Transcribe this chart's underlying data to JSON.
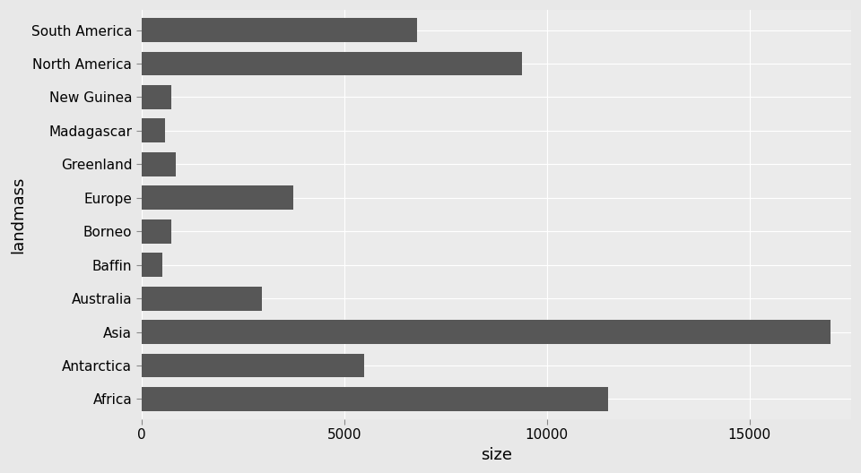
{
  "landmasses": [
    "South America",
    "North America",
    "New Guinea",
    "Madagascar",
    "Greenland",
    "Europe",
    "Borneo",
    "Baffin",
    "Australia",
    "Asia",
    "Antarctica",
    "Africa"
  ],
  "sizes": [
    6795,
    9390,
    744,
    587,
    840,
    3745,
    744,
    507,
    2968,
    17000,
    5500,
    11500
  ],
  "bar_color": "#575757",
  "fig_background": "#E8E8E8",
  "panel_background": "#EBEBEB",
  "grid_color": "#FFFFFF",
  "xlabel": "size",
  "ylabel": "landmass",
  "xlim": [
    0,
    17500
  ],
  "xticks": [
    0,
    5000,
    10000,
    15000
  ],
  "xtick_labels": [
    "0",
    "5000",
    "10000",
    "15000"
  ],
  "axis_label_fontsize": 13,
  "tick_fontsize": 11
}
